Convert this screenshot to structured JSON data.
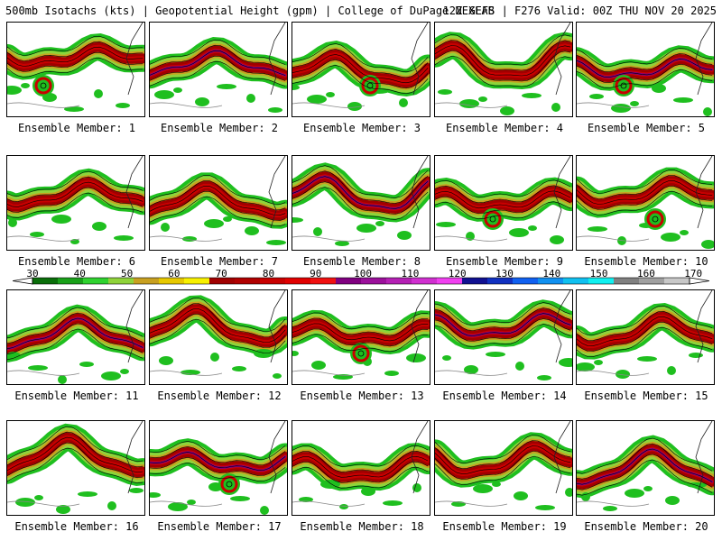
{
  "header": {
    "left": "500mb Isotachs (kts) | Geopotential Height (gpm) | College of DuPage NEXLAB",
    "right": "12Z GEFS | F276 Valid: 00Z THU NOV 20 2025"
  },
  "panels": [
    {
      "label": "Ensemble Member: 1"
    },
    {
      "label": "Ensemble Member: 2"
    },
    {
      "label": "Ensemble Member: 3"
    },
    {
      "label": "Ensemble Member: 4"
    },
    {
      "label": "Ensemble Member: 5"
    },
    {
      "label": "Ensemble Member: 6"
    },
    {
      "label": "Ensemble Member: 7"
    },
    {
      "label": "Ensemble Member: 8"
    },
    {
      "label": "Ensemble Member: 9"
    },
    {
      "label": "Ensemble Member: 10"
    },
    {
      "label": "Ensemble Member: 11"
    },
    {
      "label": "Ensemble Member: 12"
    },
    {
      "label": "Ensemble Member: 13"
    },
    {
      "label": "Ensemble Member: 14"
    },
    {
      "label": "Ensemble Member: 15"
    },
    {
      "label": "Ensemble Member: 16"
    },
    {
      "label": "Ensemble Member: 17"
    },
    {
      "label": "Ensemble Member: 18"
    },
    {
      "label": "Ensemble Member: 19"
    },
    {
      "label": "Ensemble Member: 20"
    }
  ],
  "colorbar": {
    "unit": "kts",
    "ticks": [
      "30",
      "40",
      "50",
      "60",
      "70",
      "80",
      "90",
      "100",
      "110",
      "120",
      "130",
      "140",
      "150",
      "160",
      "170"
    ],
    "colors": [
      "#0a6e0a",
      "#19a019",
      "#2fd22f",
      "#8fd33a",
      "#c8a020",
      "#e6c800",
      "#f7f000",
      "#a00000",
      "#b00000",
      "#c80000",
      "#e00000",
      "#f01010",
      "#800080",
      "#9b109b",
      "#b420b4",
      "#d030d0",
      "#f040f0",
      "#101090",
      "#1030c0",
      "#1060f0",
      "#1090f0",
      "#10c0f0",
      "#10f0f0",
      "#808080",
      "#a0a0a0",
      "#c8c8c8"
    ]
  }
}
